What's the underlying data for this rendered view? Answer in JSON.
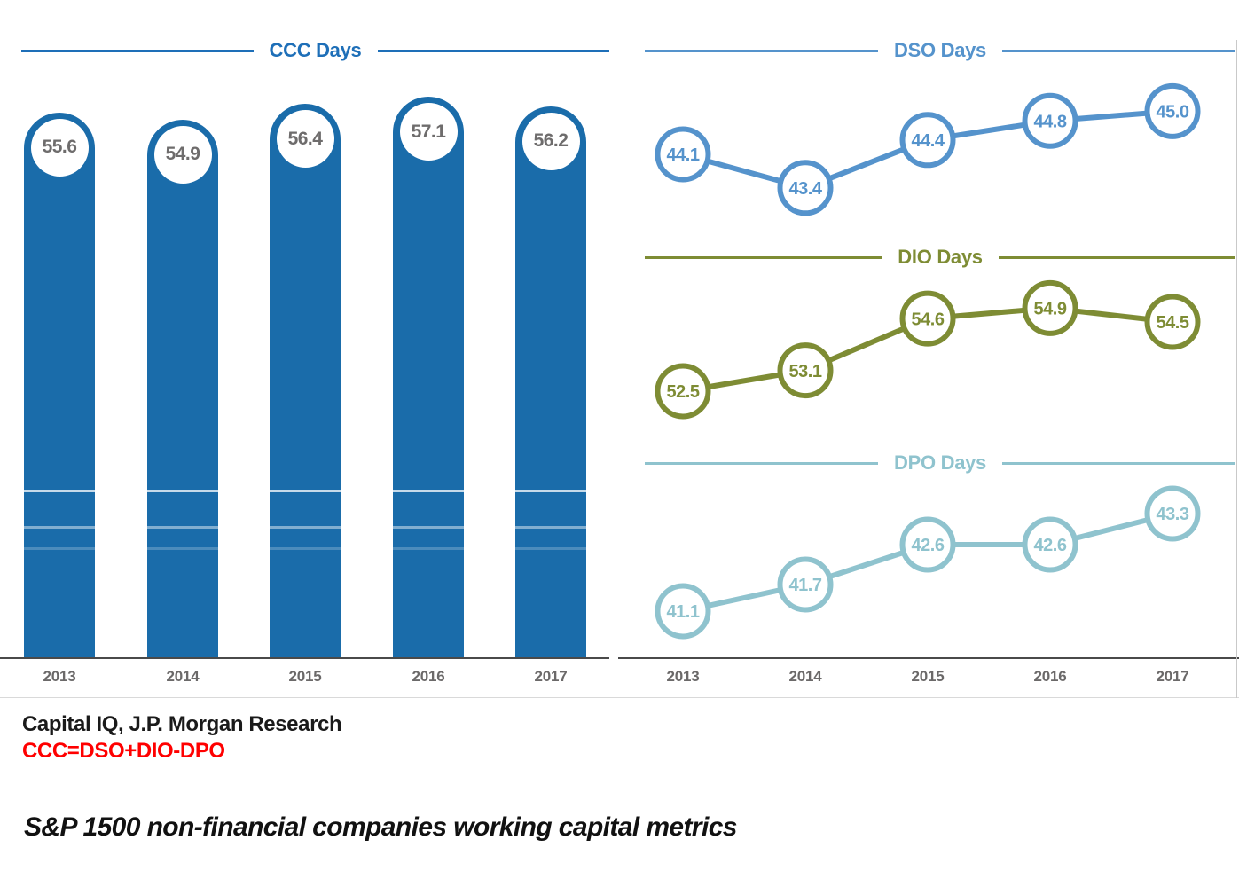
{
  "chart_data": [
    {
      "type": "bar",
      "title": "CCC Days",
      "categories": [
        "2013",
        "2014",
        "2015",
        "2016",
        "2017"
      ],
      "values": [
        55.6,
        54.9,
        56.4,
        57.1,
        56.2
      ],
      "xlabel": "",
      "ylabel": "",
      "ylim": [
        0,
        60
      ],
      "grid": false,
      "legend": "none",
      "bar_color": "#1a6caa",
      "title_color": "#1e6fb8",
      "value_label_color": "#6e6c6c"
    },
    {
      "type": "line",
      "title": "DSO Days",
      "categories": [
        "2013",
        "2014",
        "2015",
        "2016",
        "2017"
      ],
      "values": [
        44.1,
        43.4,
        44.4,
        44.8,
        45.0
      ],
      "xlabel": "",
      "ylabel": "",
      "grid": false,
      "legend": "none",
      "color": "#5593cc"
    },
    {
      "type": "line",
      "title": "DIO Days",
      "categories": [
        "2013",
        "2014",
        "2015",
        "2016",
        "2017"
      ],
      "values": [
        52.5,
        53.1,
        54.6,
        54.9,
        54.5
      ],
      "xlabel": "",
      "ylabel": "",
      "grid": false,
      "legend": "none",
      "color": "#7e8c34"
    },
    {
      "type": "line",
      "title": "DPO Days",
      "categories": [
        "2013",
        "2014",
        "2015",
        "2016",
        "2017"
      ],
      "values": [
        41.1,
        41.7,
        42.6,
        42.6,
        43.3
      ],
      "xlabel": "",
      "ylabel": "",
      "grid": false,
      "legend": "none",
      "color": "#8fc3ce"
    }
  ],
  "axis": {
    "year_label_color": "#6b6969",
    "axis_line_color": "#4a4a4a"
  },
  "footer": {
    "source": "Capital IQ, J.P. Morgan Research",
    "formula": "CCC=DSO+DIO-DPO",
    "formula_color": "#ff0000",
    "caption": "S&P 1500 non-financial companies working capital metrics"
  }
}
